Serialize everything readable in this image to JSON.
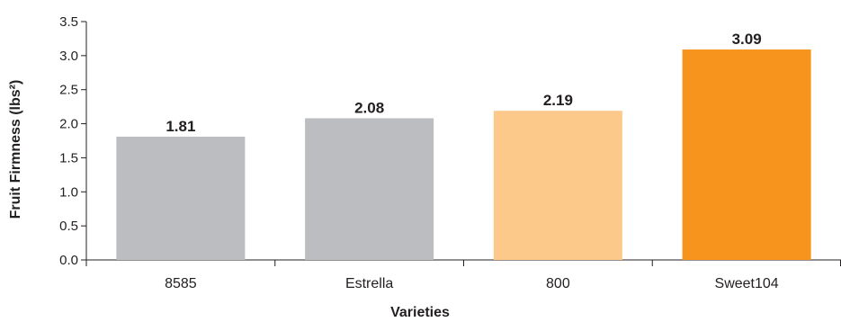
{
  "chart_data": {
    "type": "bar",
    "categories": [
      "8585",
      "Estrella",
      "800",
      "Sweet104"
    ],
    "values": [
      1.81,
      2.08,
      2.19,
      3.09
    ],
    "value_labels": [
      "1.81",
      "2.08",
      "2.19",
      "3.09"
    ],
    "colors": [
      "#bcbdc0",
      "#bcbdc0",
      "#fcc98b",
      "#f7941d"
    ],
    "xlabel": "Varieties",
    "ylabel": "Fruit Firmness  (lbs²)",
    "ylim": [
      0,
      3.5
    ],
    "yticks": [
      "0.0",
      "0.5",
      "1.0",
      "1.5",
      "2.0",
      "2.5",
      "3.0",
      "3.5"
    ],
    "grid": false,
    "legend": "none"
  }
}
